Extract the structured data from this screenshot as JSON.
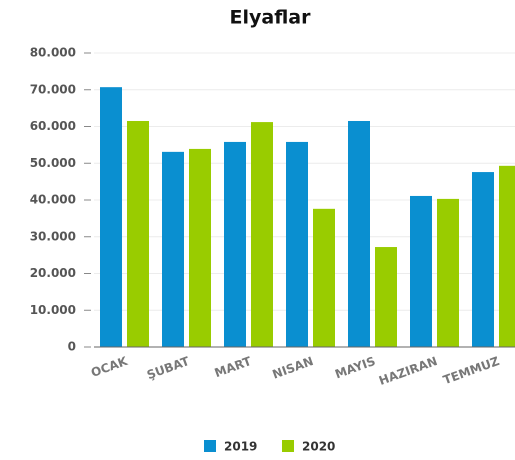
{
  "chart_data": {
    "type": "bar",
    "title": "Elyaflar",
    "categories": [
      "OCAK",
      "ŞUBAT",
      "MART",
      "NISAN",
      "MAYIS",
      "HAZIRAN",
      "TEMMUZ"
    ],
    "series": [
      {
        "name": "2019",
        "color": "#0a8fd0",
        "values": [
          70700,
          53100,
          55800,
          55800,
          61500,
          41100,
          47600
        ]
      },
      {
        "name": "2020",
        "color": "#99cc00",
        "values": [
          61500,
          53900,
          61200,
          37600,
          27200,
          40300,
          49300
        ]
      }
    ],
    "ylim": [
      0,
      80000
    ],
    "yticks": [
      0,
      {
        "value": 10000,
        "label": "10.000"
      },
      {
        "value": 20000,
        "label": "20.000"
      },
      {
        "value": 30000,
        "label": "30.000"
      },
      {
        "value": 40000,
        "label": "40.000"
      },
      {
        "value": 50000,
        "label": "50.000"
      },
      {
        "value": 60000,
        "label": "60.000"
      },
      {
        "value": 70000,
        "label": "70.000"
      },
      {
        "value": 80000,
        "label": "80.000"
      }
    ],
    "grid": true,
    "legend": "bottom"
  }
}
